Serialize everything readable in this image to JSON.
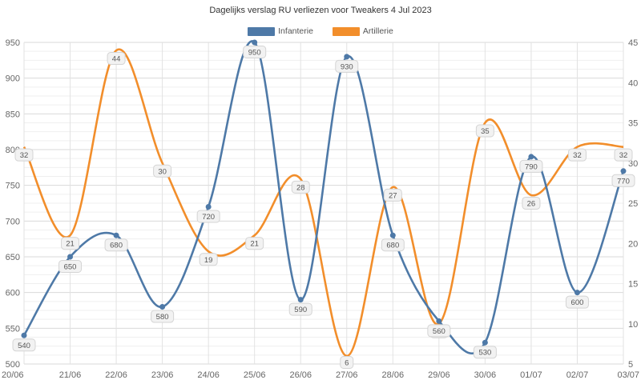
{
  "chart_data": {
    "type": "line",
    "title": "Dagelijks verslag RU verliezen voor Tweakers 4 Jul 2023",
    "categories": [
      "20/06",
      "21/06",
      "22/06",
      "23/06",
      "24/06",
      "25/06",
      "26/06",
      "27/06",
      "28/06",
      "29/06",
      "30/06",
      "01/07",
      "02/07",
      "03/07"
    ],
    "series": [
      {
        "name": "Infanterie",
        "axis": "left",
        "color": "#4e79a7",
        "values": [
          540,
          650,
          680,
          580,
          720,
          950,
          590,
          930,
          680,
          560,
          530,
          790,
          600,
          770
        ]
      },
      {
        "name": "Artillerie",
        "axis": "right",
        "color": "#f28e2b",
        "values": [
          32,
          21,
          44,
          30,
          19,
          21,
          28,
          6,
          27,
          10,
          35,
          26,
          32,
          32
        ]
      }
    ],
    "y_left": {
      "min": 500,
      "max": 950,
      "ticks": [
        500,
        550,
        600,
        650,
        700,
        750,
        800,
        850,
        900,
        950
      ]
    },
    "y_right": {
      "min": 5,
      "max": 45,
      "ticks": [
        5,
        10,
        15,
        20,
        25,
        30,
        35,
        40,
        45
      ]
    },
    "grid": true,
    "legend_position": "top-center"
  }
}
